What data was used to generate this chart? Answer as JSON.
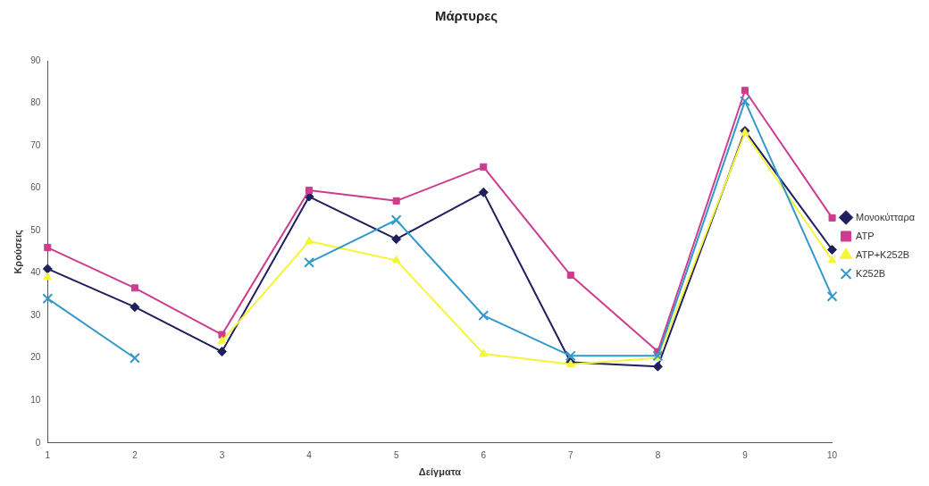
{
  "chart_data": {
    "type": "line",
    "title": "Μάρτυρες",
    "xlabel": "Δείγματα",
    "ylabel": "Κρούσεις",
    "categories": [
      "1",
      "2",
      "3",
      "4",
      "5",
      "6",
      "7",
      "8",
      "9",
      "10"
    ],
    "ylim": [
      0,
      90
    ],
    "yticks": [
      0,
      10,
      20,
      30,
      40,
      50,
      60,
      70,
      80,
      90
    ],
    "grid": false,
    "legend": "right",
    "series": [
      {
        "name": "Μονοκύτταρα",
        "color": "#1f1f5f",
        "marker": "diamond",
        "values": [
          41,
          32,
          21.5,
          58,
          48,
          59,
          19,
          18,
          73.5,
          45.5
        ]
      },
      {
        "name": "ATP",
        "color": "#cc3d8f",
        "marker": "square",
        "values": [
          46,
          36.5,
          25.5,
          59.5,
          57,
          65,
          39.5,
          21.5,
          83,
          53
        ]
      },
      {
        "name": "ATP+K252B",
        "color": "#f5f53a",
        "marker": "triangle",
        "values": [
          39,
          null,
          24,
          47.5,
          43,
          21,
          18.5,
          20,
          73,
          43
        ]
      },
      {
        "name": "K252B",
        "color": "#3399cc",
        "marker": "cross",
        "values": [
          34,
          20,
          null,
          42.5,
          52.5,
          30,
          20.5,
          20.5,
          80.5,
          34.5
        ]
      }
    ]
  }
}
